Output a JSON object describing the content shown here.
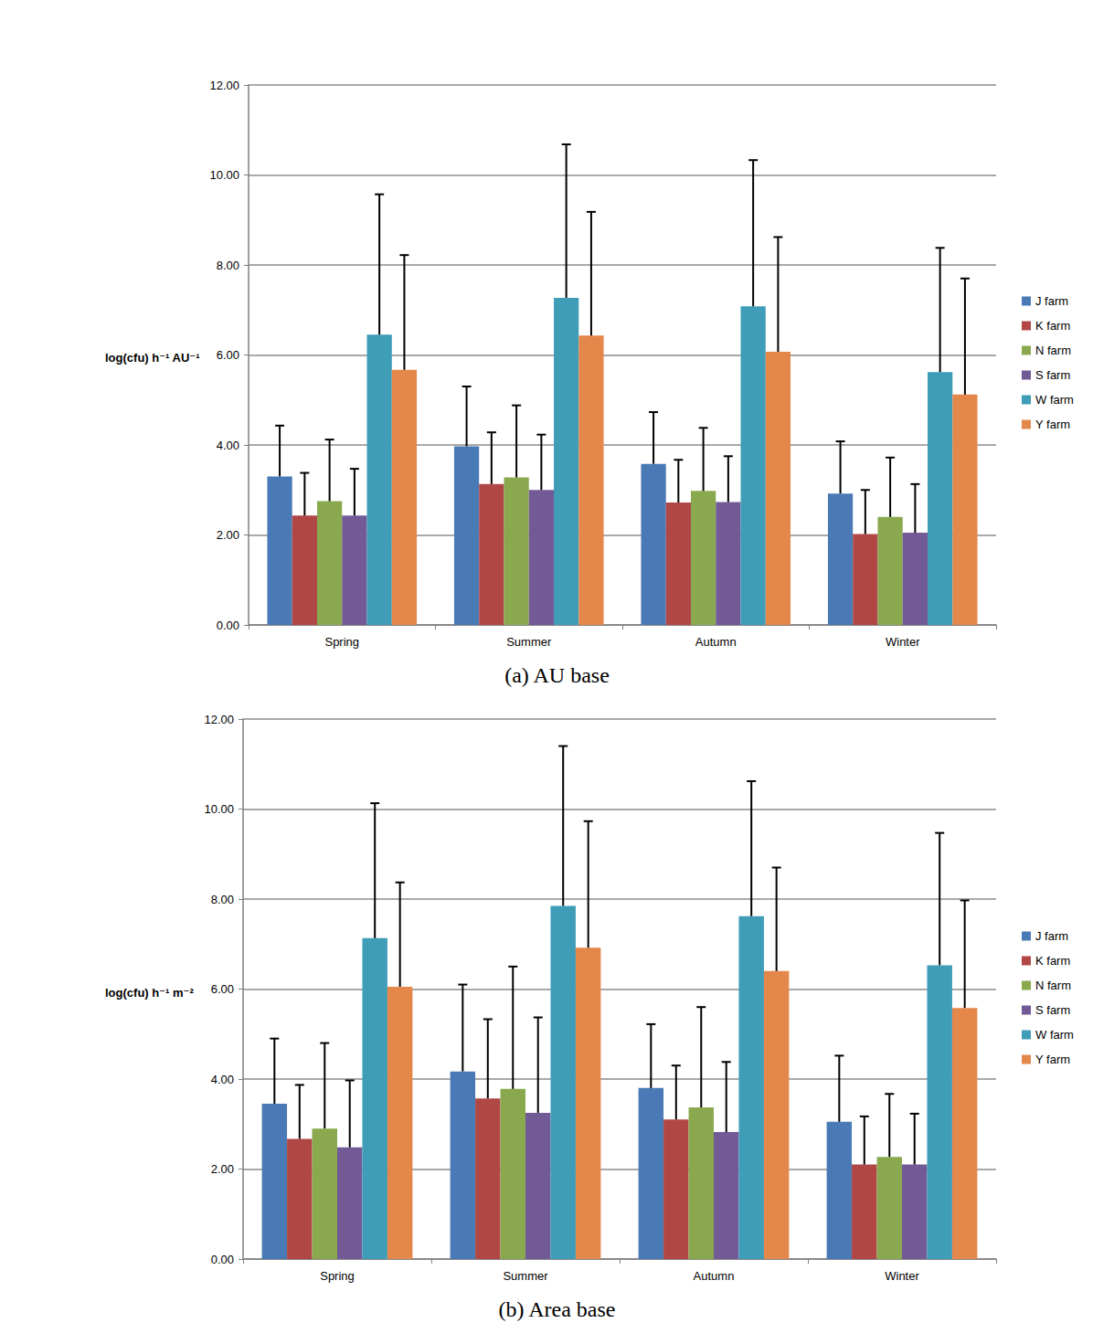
{
  "chart_data": [
    {
      "type": "bar",
      "title": "(a) AU base",
      "ylabel": "log(cfu) h⁻¹ AU⁻¹",
      "categories": [
        "Spring",
        "Summer",
        "Autumn",
        "Winter"
      ],
      "series": [
        {
          "name": "J farm",
          "color": "#4a7ab5",
          "values": [
            3.3,
            3.97,
            3.58,
            2.92
          ],
          "errors": [
            1.13,
            1.33,
            1.15,
            1.16
          ]
        },
        {
          "name": "K farm",
          "color": "#b04745",
          "values": [
            2.43,
            3.13,
            2.72,
            2.02
          ],
          "errors": [
            0.95,
            1.15,
            0.95,
            0.98
          ]
        },
        {
          "name": "N farm",
          "color": "#8aa94f",
          "values": [
            2.75,
            3.28,
            2.98,
            2.4
          ],
          "errors": [
            1.37,
            1.6,
            1.4,
            1.32
          ]
        },
        {
          "name": "S farm",
          "color": "#725a96",
          "values": [
            2.43,
            3.0,
            2.73,
            2.05
          ],
          "errors": [
            1.04,
            1.23,
            1.02,
            1.08
          ]
        },
        {
          "name": "W farm",
          "color": "#3f9db8",
          "values": [
            6.45,
            7.27,
            7.08,
            5.62
          ],
          "errors": [
            3.12,
            3.41,
            3.25,
            2.76
          ]
        },
        {
          "name": "Y farm",
          "color": "#e3874a",
          "values": [
            5.67,
            6.43,
            6.07,
            5.12
          ],
          "errors": [
            2.55,
            2.75,
            2.55,
            2.58
          ]
        }
      ],
      "ylim": [
        0,
        12
      ],
      "yticks": [
        {
          "value": 0,
          "label": "0.00"
        },
        {
          "value": 2,
          "label": "2.00"
        },
        {
          "value": 4,
          "label": "4.00"
        },
        {
          "value": 6,
          "label": "6.00"
        },
        {
          "value": 8,
          "label": "8.00"
        },
        {
          "value": 10,
          "label": "10.00"
        },
        {
          "value": 12,
          "label": "12.00"
        }
      ],
      "grid": true,
      "legend": "right"
    },
    {
      "type": "bar",
      "title": "(b) Area base",
      "ylabel": "log(cfu) h⁻¹ m⁻²",
      "categories": [
        "Spring",
        "Summer",
        "Autumn",
        "Winter"
      ],
      "series": [
        {
          "name": "J farm",
          "color": "#4a7ab5",
          "values": [
            3.45,
            4.17,
            3.8,
            3.05
          ],
          "errors": [
            1.45,
            1.93,
            1.42,
            1.47
          ]
        },
        {
          "name": "K farm",
          "color": "#b04745",
          "values": [
            2.67,
            3.57,
            3.1,
            2.1
          ],
          "errors": [
            1.2,
            1.76,
            1.2,
            1.07
          ]
        },
        {
          "name": "N farm",
          "color": "#8aa94f",
          "values": [
            2.9,
            3.78,
            3.37,
            2.27
          ],
          "errors": [
            1.9,
            2.72,
            2.23,
            1.4
          ]
        },
        {
          "name": "S farm",
          "color": "#725a96",
          "values": [
            2.48,
            3.25,
            2.82,
            2.1
          ],
          "errors": [
            1.49,
            2.12,
            1.56,
            1.13
          ]
        },
        {
          "name": "W farm",
          "color": "#3f9db8",
          "values": [
            7.13,
            7.85,
            7.62,
            6.53
          ],
          "errors": [
            3.0,
            3.55,
            3.0,
            2.94
          ]
        },
        {
          "name": "Y farm",
          "color": "#e3874a",
          "values": [
            6.05,
            6.92,
            6.4,
            5.58
          ],
          "errors": [
            2.32,
            2.81,
            2.3,
            2.39
          ]
        }
      ],
      "ylim": [
        0,
        12
      ],
      "yticks": [
        {
          "value": 0,
          "label": "0.00"
        },
        {
          "value": 2,
          "label": "2.00"
        },
        {
          "value": 4,
          "label": "4.00"
        },
        {
          "value": 6,
          "label": "6.00"
        },
        {
          "value": 8,
          "label": "8.00"
        },
        {
          "value": 10,
          "label": "10.00"
        },
        {
          "value": 12,
          "label": "12.00"
        }
      ],
      "grid": true,
      "legend": "right"
    }
  ]
}
